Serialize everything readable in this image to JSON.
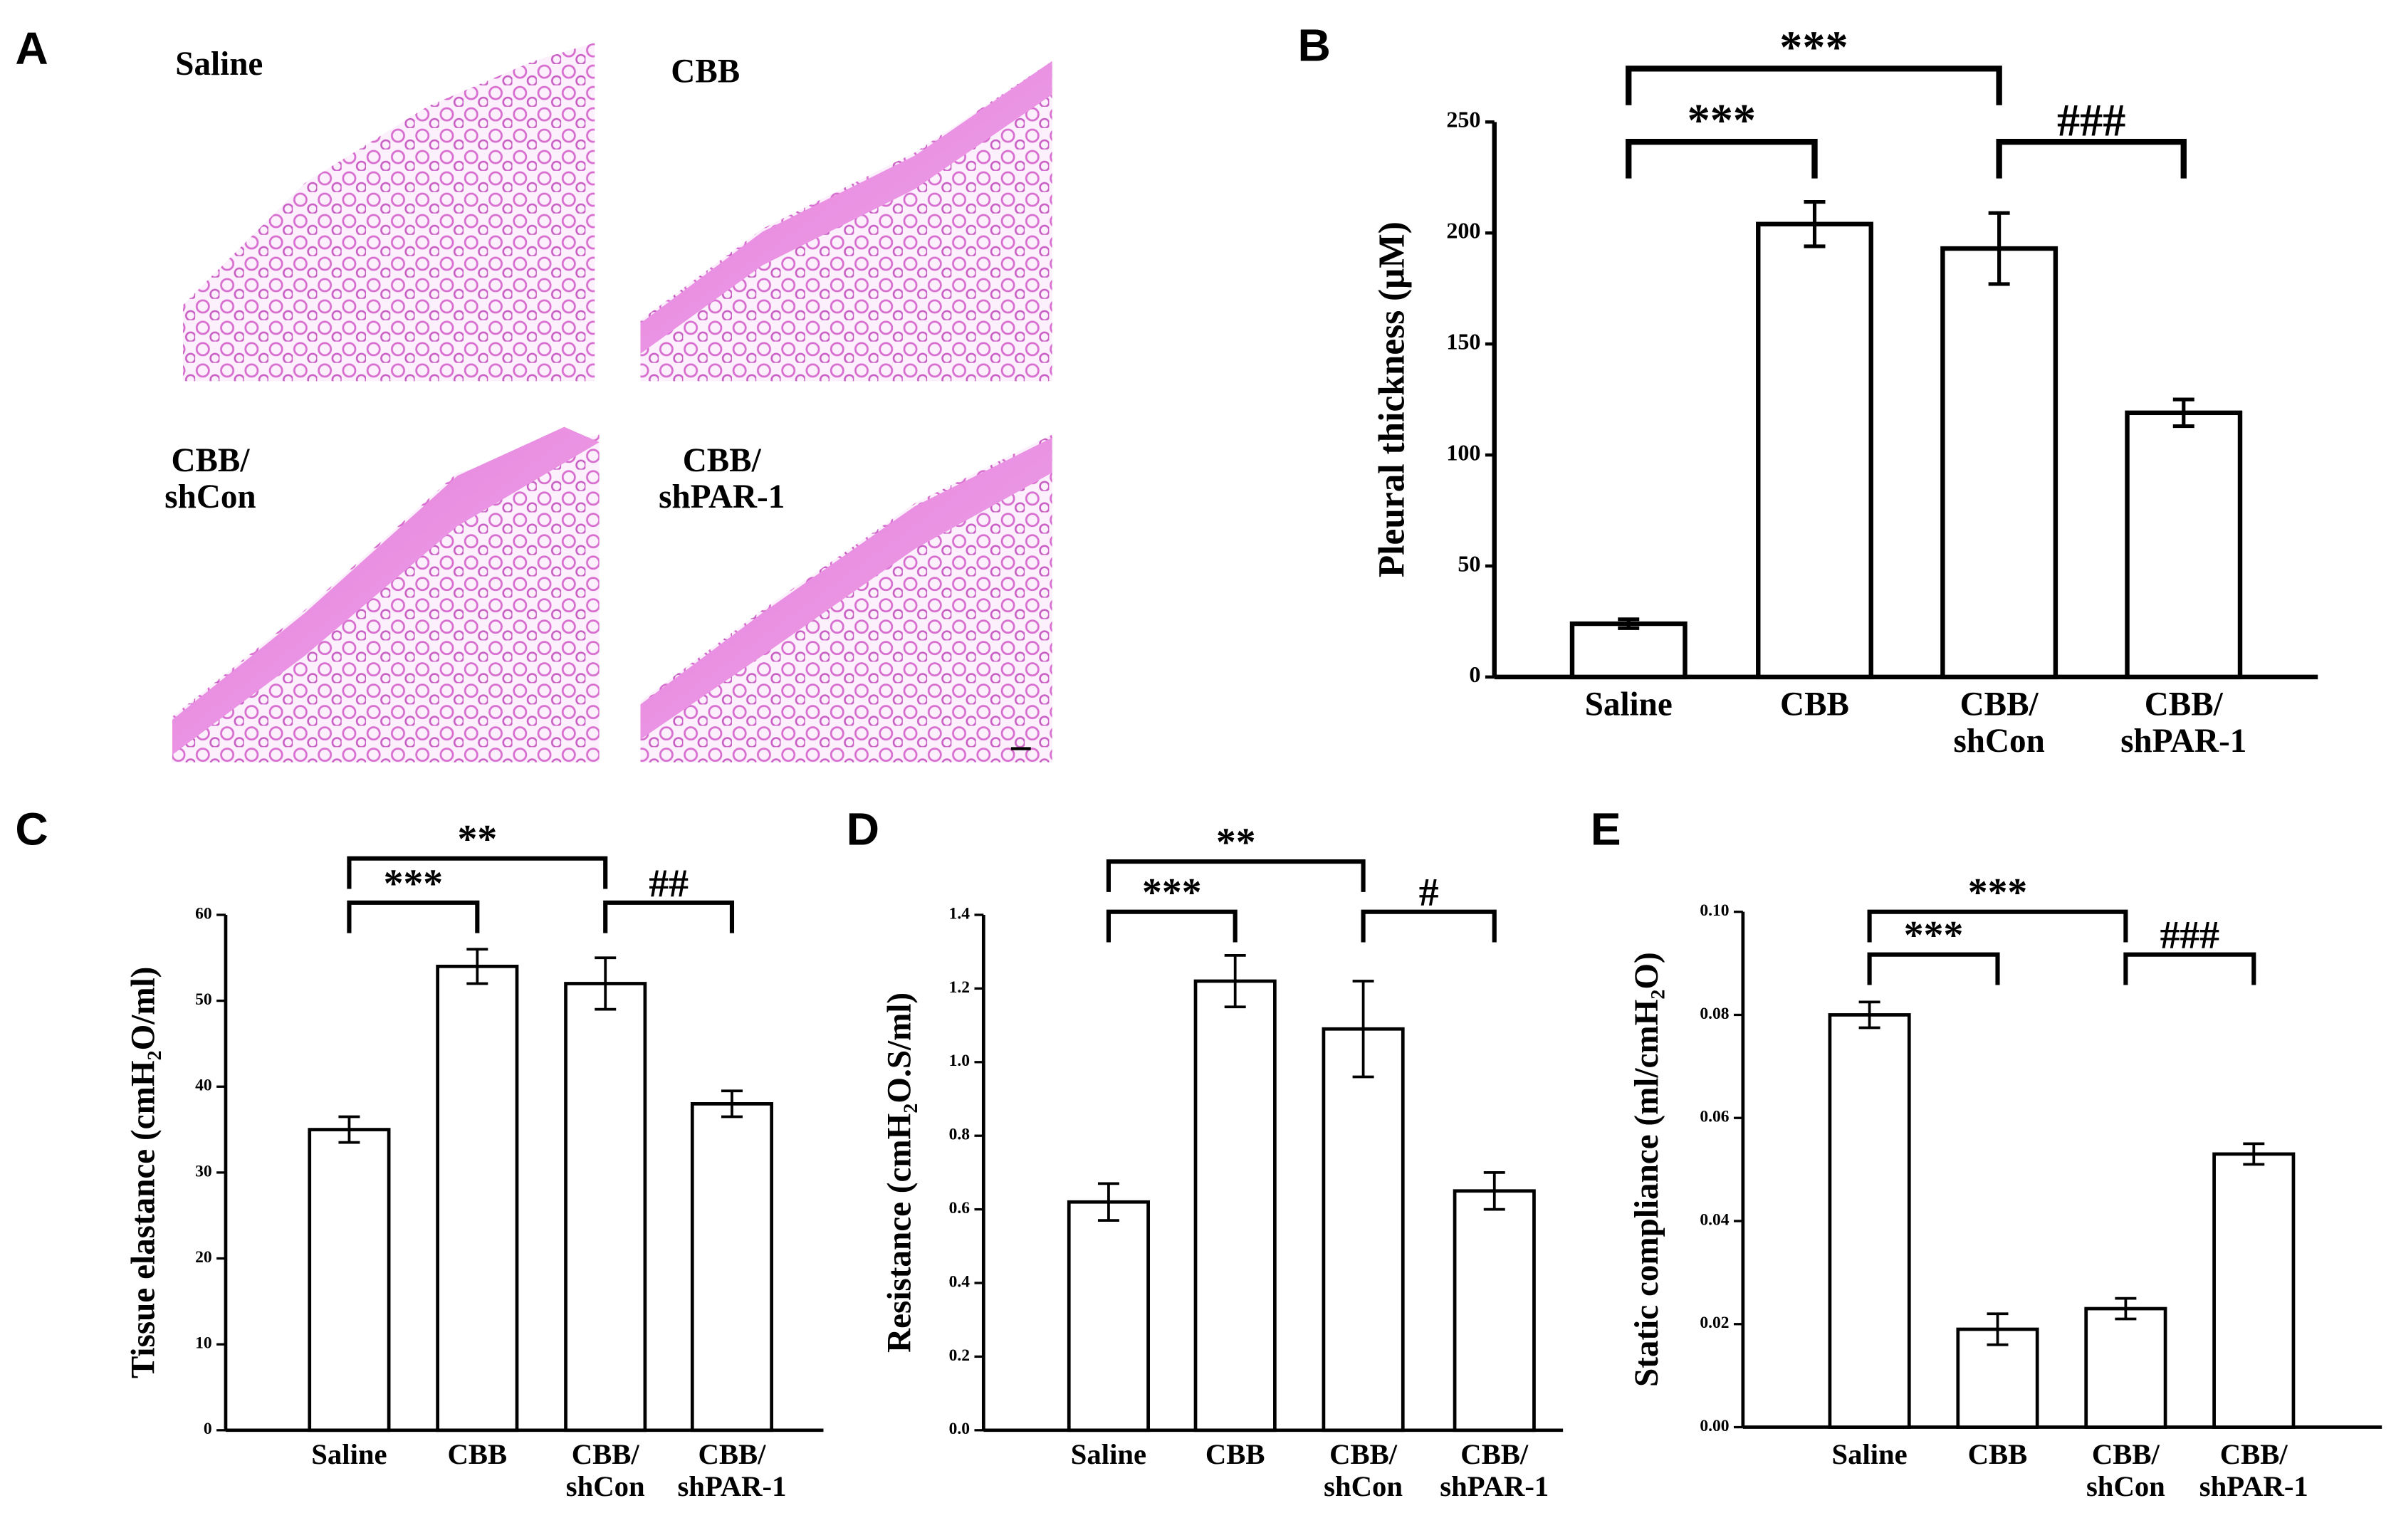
{
  "panel_a": {
    "label": "A",
    "images": [
      {
        "label": "Saline"
      },
      {
        "label": "CBB"
      },
      {
        "label": "CBB/\nshCon"
      },
      {
        "label": "CBB/\nshPAR-1"
      }
    ]
  },
  "chart_data": [
    {
      "type": "bar",
      "panel": "B",
      "ylabel": "Pleural thickness (μM)",
      "categories": [
        "Saline",
        "CBB",
        "CBB/\nshCon",
        "CBB/\nshPAR-1"
      ],
      "values": [
        24,
        204,
        193,
        119
      ],
      "errors": [
        2,
        10,
        16,
        6
      ],
      "color": "#ffffff",
      "edgecolor": "#000000",
      "ylim": [
        0,
        250
      ],
      "yticks": [
        0,
        50,
        100,
        150,
        200,
        250
      ],
      "annotations": [
        {
          "text": "***",
          "between": [
            "Saline",
            "CBB"
          ]
        },
        {
          "text": "***",
          "between": [
            "Saline",
            "CBB/\nshCon"
          ]
        },
        {
          "text": "###",
          "between": [
            "CBB/\nshCon",
            "CBB/\nshPAR-1"
          ]
        }
      ]
    },
    {
      "type": "bar",
      "panel": "C",
      "ylabel": "Tissue elastance (cmH₂O/ml)",
      "categories": [
        "Saline",
        "CBB",
        "CBB/\nshCon",
        "CBB/\nshPAR-1"
      ],
      "values": [
        35,
        54,
        52,
        38
      ],
      "errors": [
        1.5,
        2,
        3,
        1.5
      ],
      "color": "#ffffff",
      "edgecolor": "#000000",
      "ylim": [
        0,
        60
      ],
      "yticks": [
        0,
        10,
        20,
        30,
        40,
        50,
        60
      ],
      "annotations": [
        {
          "text": "***",
          "between": [
            "Saline",
            "CBB"
          ]
        },
        {
          "text": "**",
          "between": [
            "Saline",
            "CBB/\nshCon"
          ]
        },
        {
          "text": "##",
          "between": [
            "CBB/\nshCon",
            "CBB/\nshPAR-1"
          ]
        }
      ]
    },
    {
      "type": "bar",
      "panel": "D",
      "ylabel": "Resistance (cmH₂O.S/ml)",
      "categories": [
        "Saline",
        "CBB",
        "CBB/\nshCon",
        "CBB/\nshPAR-1"
      ],
      "values": [
        0.62,
        1.22,
        1.09,
        0.65
      ],
      "errors": [
        0.05,
        0.07,
        0.13,
        0.05
      ],
      "color": "#ffffff",
      "edgecolor": "#000000",
      "ylim": [
        0,
        1.4
      ],
      "yticks": [
        {
          "value": 0,
          "label": "0.0"
        },
        0.2,
        0.4,
        0.6,
        0.8,
        {
          "value": 1,
          "label": "1.0"
        },
        1.2,
        1.4
      ],
      "annotations": [
        {
          "text": "***",
          "between": [
            "Saline",
            "CBB"
          ]
        },
        {
          "text": "**",
          "between": [
            "Saline",
            "CBB/\nshCon"
          ]
        },
        {
          "text": "#",
          "between": [
            "CBB/\nshCon",
            "CBB/\nshPAR-1"
          ]
        }
      ]
    },
    {
      "type": "bar",
      "panel": "E",
      "ylabel": "Static compliance (ml/cmH₂O)",
      "categories": [
        "Saline",
        "CBB",
        "CBB/\nshCon",
        "CBB/\nshPAR-1"
      ],
      "values": [
        0.08,
        0.019,
        0.023,
        0.053
      ],
      "errors": [
        0.0025,
        0.003,
        0.002,
        0.002
      ],
      "color": "#ffffff",
      "edgecolor": "#000000",
      "ylim": [
        0,
        0.1
      ],
      "yticks": [
        {
          "value": 0,
          "label": "0.00"
        },
        0.02,
        0.04,
        0.06,
        0.08,
        {
          "value": 0.1,
          "label": "0.10"
        }
      ],
      "annotations": [
        {
          "text": "***",
          "between": [
            "Saline",
            "CBB"
          ]
        },
        {
          "text": "***",
          "between": [
            "Saline",
            "CBB/\nshCon"
          ]
        },
        {
          "text": "###",
          "between": [
            "CBB/\nshCon",
            "CBB/\nshPAR-1"
          ]
        }
      ]
    }
  ]
}
